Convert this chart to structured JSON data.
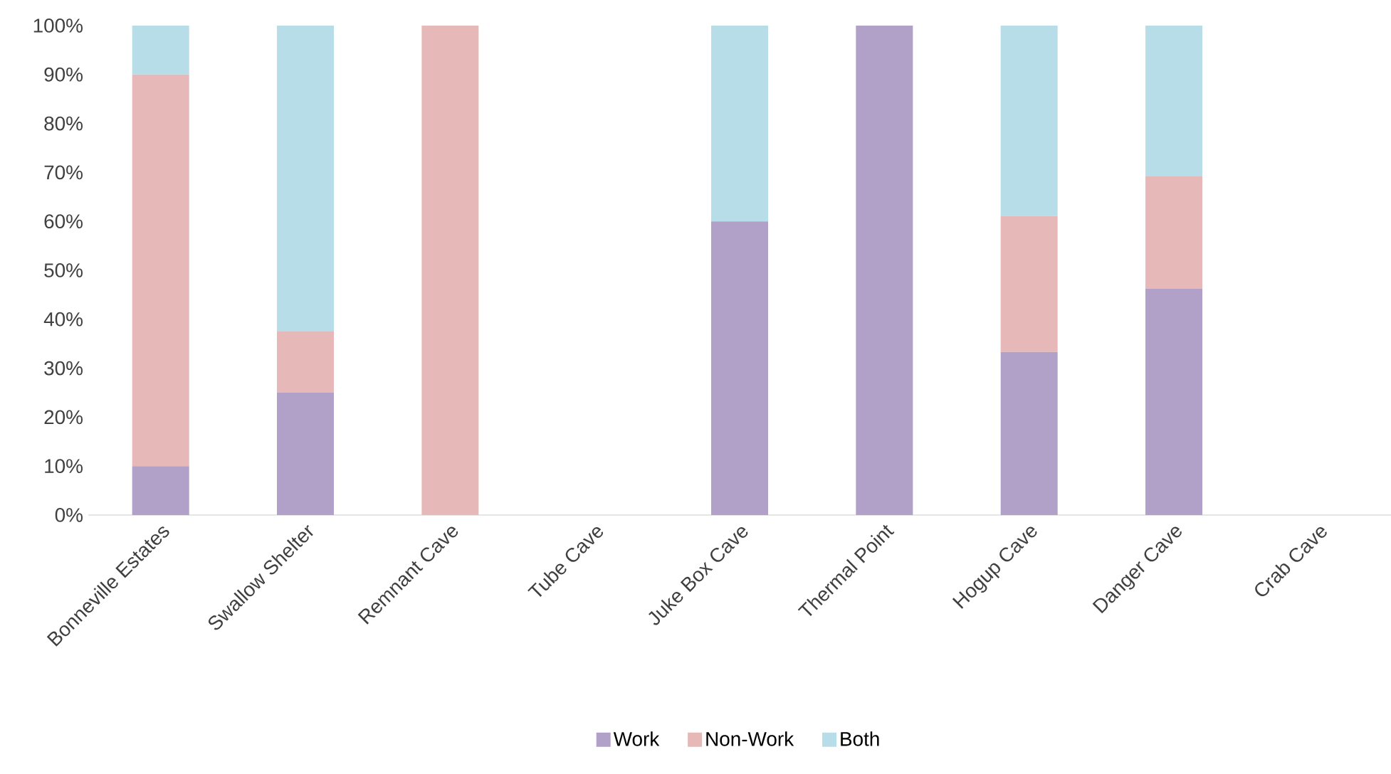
{
  "chart_data": {
    "type": "bar",
    "stacked": true,
    "categories": [
      "Bonneville Estates",
      "Swallow Shelter",
      "Remnant Cave",
      "Tube Cave",
      "Juke Box Cave",
      "Thermal Point",
      "Hogup Cave",
      "Danger  Cave",
      "Crab Cave"
    ],
    "series": [
      {
        "name": "Work",
        "color": "#b1a0c7",
        "values": [
          10,
          25,
          0,
          0,
          60,
          100,
          33.3,
          46.2,
          0
        ]
      },
      {
        "name": "Non-Work",
        "color": "#e6b8b7",
        "values": [
          80,
          12.5,
          100,
          0,
          0,
          0,
          27.8,
          23.1,
          0
        ]
      },
      {
        "name": "Both",
        "color": "#b7dee8",
        "values": [
          10,
          62.5,
          0,
          0,
          40,
          0,
          38.9,
          30.7,
          0
        ]
      }
    ],
    "ylim": [
      0,
      100
    ],
    "yticks": [
      {
        "value": 0,
        "label": "0%"
      },
      {
        "value": 10,
        "label": "10%"
      },
      {
        "value": 20,
        "label": "20%"
      },
      {
        "value": 30,
        "label": "30%"
      },
      {
        "value": 40,
        "label": "40%"
      },
      {
        "value": 50,
        "label": "50%"
      },
      {
        "value": 60,
        "label": "60%"
      },
      {
        "value": 70,
        "label": "70%"
      },
      {
        "value": 80,
        "label": "80%"
      },
      {
        "value": 90,
        "label": "90%"
      },
      {
        "value": 100,
        "label": "100%"
      }
    ],
    "legend": "bottom"
  }
}
